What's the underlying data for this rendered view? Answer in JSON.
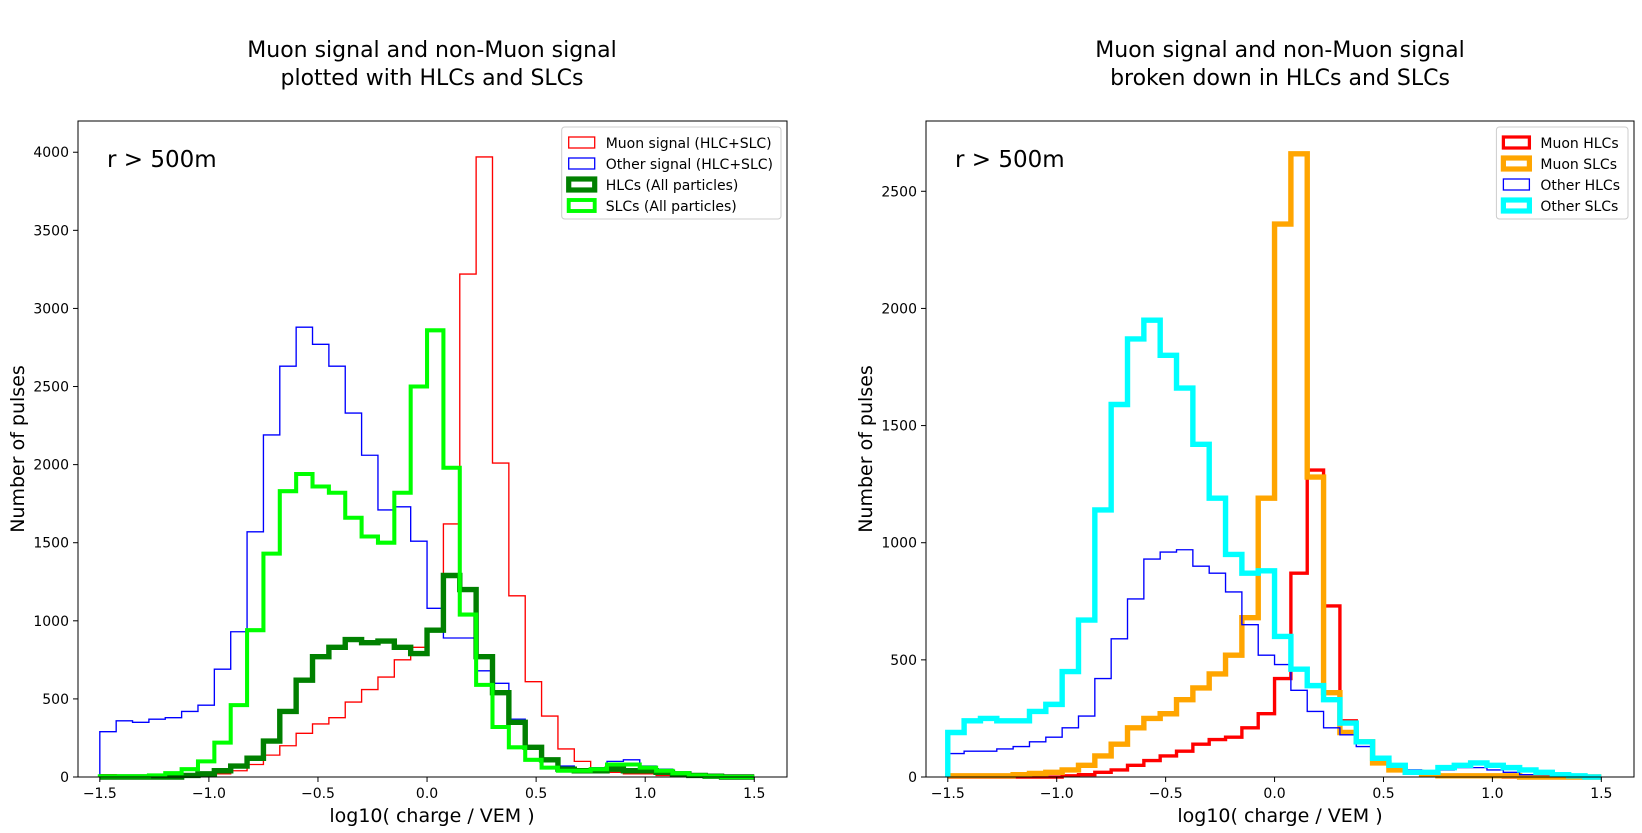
{
  "chart_data": [
    {
      "type": "histogram",
      "title_lines": [
        "Muon signal and non-Muon signal",
        "plotted with HLCs and SLCs"
      ],
      "xlabel": "log10( charge / VEM )",
      "ylabel": "Number of pulses",
      "annotation": "r > 500m",
      "xlim": [
        -1.6,
        1.65
      ],
      "ylim": [
        0,
        4200
      ],
      "xticks": [
        -1.5,
        -1.0,
        -0.5,
        0.0,
        0.5,
        1.0,
        1.5
      ],
      "xtick_labels": [
        "−1.5",
        "−1.0",
        "−0.5",
        "0.0",
        "0.5",
        "1.0",
        "1.5"
      ],
      "yticks": [
        0,
        500,
        1000,
        1500,
        2000,
        2500,
        3000,
        3500,
        4000
      ],
      "ytick_labels": [
        "0",
        "500",
        "1000",
        "1500",
        "2000",
        "2500",
        "3000",
        "3500",
        "4000"
      ],
      "legend_position": "upper right",
      "bin_edges_range": [
        -1.5,
        1.5
      ],
      "bin_count": 40,
      "series": [
        {
          "name": "Muon signal (HLC+SLC)",
          "color": "#ff0000",
          "linewidth": 1,
          "values": [
            15,
            10,
            5,
            5,
            5,
            10,
            15,
            20,
            40,
            80,
            140,
            200,
            280,
            340,
            380,
            480,
            560,
            640,
            750,
            830,
            950,
            1620,
            3220,
            3970,
            2010,
            1160,
            610,
            390,
            180,
            100,
            50,
            30,
            20,
            20,
            10,
            5,
            5,
            5,
            0,
            0
          ]
        },
        {
          "name": "Other signal (HLC+SLC)",
          "color": "#0000ff",
          "linewidth": 1,
          "values": [
            290,
            360,
            350,
            370,
            380,
            420,
            460,
            690,
            930,
            1570,
            2190,
            2630,
            2880,
            2770,
            2630,
            2330,
            2060,
            1710,
            1730,
            1510,
            1080,
            890,
            890,
            680,
            600,
            370,
            200,
            120,
            70,
            40,
            60,
            100,
            110,
            70,
            50,
            30,
            20,
            10,
            5,
            0
          ]
        },
        {
          "name": "HLCs (All particles)",
          "color": "#008000",
          "linewidth": 4,
          "values": [
            0,
            0,
            0,
            0,
            0,
            10,
            20,
            40,
            70,
            120,
            230,
            420,
            620,
            770,
            830,
            880,
            860,
            870,
            830,
            790,
            940,
            1290,
            1200,
            770,
            540,
            350,
            190,
            110,
            50,
            40,
            40,
            50,
            40,
            40,
            30,
            20,
            10,
            5,
            0,
            0
          ]
        },
        {
          "name": "SLCs (All particles)",
          "color": "#00ff00",
          "linewidth": 3,
          "values": [
            5,
            5,
            5,
            10,
            25,
            50,
            100,
            220,
            460,
            940,
            1430,
            1830,
            1940,
            1860,
            1820,
            1660,
            1540,
            1500,
            1820,
            2500,
            2860,
            1980,
            1040,
            590,
            320,
            190,
            110,
            60,
            40,
            40,
            50,
            80,
            80,
            60,
            40,
            25,
            10,
            5,
            0,
            0
          ]
        }
      ]
    },
    {
      "type": "histogram",
      "title_lines": [
        "Muon signal and non-Muon signal",
        "broken down in HLCs and SLCs"
      ],
      "xlabel": "log10( charge / VEM )",
      "ylabel": "Number of pulses",
      "annotation": "r > 500m",
      "xlim": [
        -1.6,
        1.65
      ],
      "ylim": [
        0,
        2800
      ],
      "xticks": [
        -1.5,
        -1.0,
        -0.5,
        0.0,
        0.5,
        1.0,
        1.5
      ],
      "xtick_labels": [
        "−1.5",
        "−1.0",
        "−0.5",
        "0.0",
        "0.5",
        "1.0",
        "1.5"
      ],
      "yticks": [
        0,
        500,
        1000,
        1500,
        2000,
        2500
      ],
      "ytick_labels": [
        "0",
        "500",
        "1000",
        "1500",
        "2000",
        "2500"
      ],
      "legend_position": "upper right",
      "bin_edges_range": [
        -1.5,
        1.5
      ],
      "bin_count": 40,
      "series": [
        {
          "name": "Muon HLCs",
          "color": "#ff0000",
          "linewidth": 2.5,
          "values": [
            0,
            0,
            0,
            0,
            0,
            0,
            0,
            5,
            10,
            20,
            30,
            50,
            70,
            90,
            110,
            140,
            160,
            170,
            210,
            270,
            420,
            870,
            1310,
            730,
            240,
            150,
            80,
            50,
            20,
            10,
            5,
            5,
            5,
            5,
            0,
            0,
            0,
            0,
            0,
            0
          ]
        },
        {
          "name": "Muon SLCs",
          "color": "#ffa500",
          "linewidth": 4,
          "values": [
            5,
            5,
            5,
            5,
            10,
            15,
            20,
            30,
            50,
            90,
            140,
            210,
            250,
            270,
            330,
            380,
            440,
            520,
            680,
            1190,
            2360,
            2660,
            1280,
            360,
            190,
            150,
            60,
            30,
            20,
            10,
            5,
            5,
            5,
            5,
            5,
            0,
            0,
            0,
            0,
            0
          ]
        },
        {
          "name": "Other HLCs",
          "color": "#0000ff",
          "linewidth": 1,
          "values": [
            100,
            110,
            110,
            120,
            130,
            150,
            170,
            210,
            260,
            420,
            590,
            760,
            930,
            960,
            970,
            900,
            870,
            790,
            650,
            520,
            480,
            370,
            280,
            210,
            180,
            130,
            80,
            50,
            30,
            20,
            30,
            40,
            40,
            30,
            20,
            10,
            10,
            5,
            0,
            0
          ]
        },
        {
          "name": "Other SLCs",
          "color": "#00ffff",
          "linewidth": 4,
          "values": [
            190,
            240,
            250,
            240,
            240,
            280,
            310,
            450,
            670,
            1140,
            1590,
            1870,
            1950,
            1800,
            1660,
            1420,
            1190,
            950,
            870,
            880,
            600,
            460,
            390,
            330,
            230,
            150,
            80,
            50,
            20,
            20,
            40,
            50,
            60,
            50,
            40,
            30,
            20,
            10,
            5,
            0
          ]
        }
      ]
    }
  ]
}
